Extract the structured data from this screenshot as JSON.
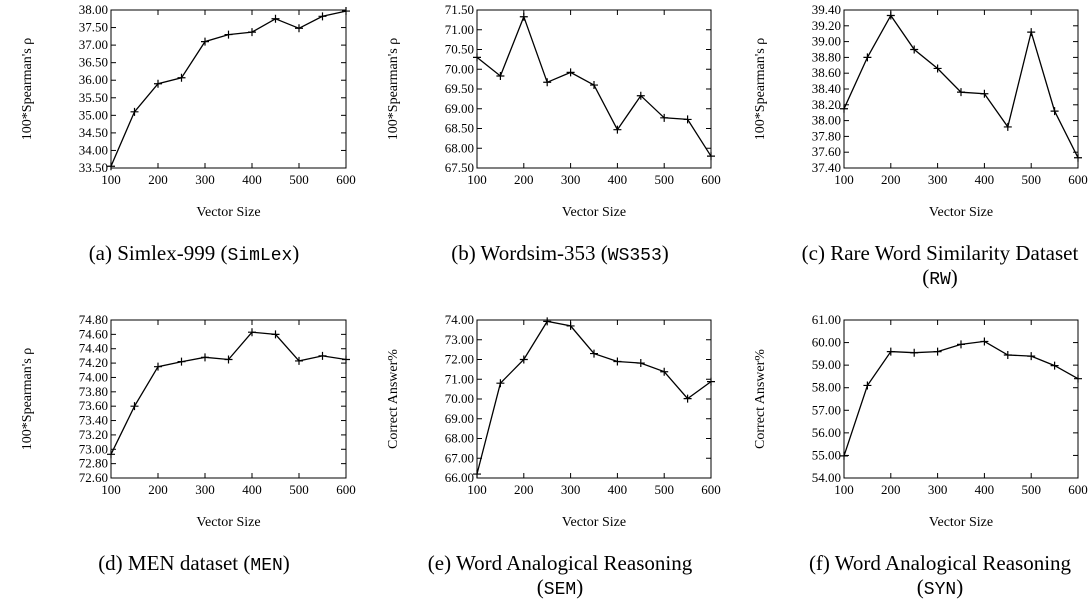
{
  "chart_data": [
    {
      "type": "line",
      "caption": {
        "prefix": "(a) Simlex-999 (",
        "code": "SimLex",
        "suffix": ")"
      },
      "xlabel": "Vector Size",
      "ylabel": "100*Spearman's ρ",
      "x": [
        100,
        150,
        200,
        250,
        300,
        350,
        400,
        450,
        500,
        550,
        600
      ],
      "y": [
        33.55,
        35.1,
        35.9,
        36.07,
        37.1,
        37.3,
        37.37,
        37.75,
        37.48,
        37.82,
        37.97
      ],
      "xlim": [
        100,
        600
      ],
      "ylim": [
        33.5,
        38.0
      ],
      "xticks": [
        "100",
        "200",
        "300",
        "400",
        "500",
        "600"
      ],
      "yticks": [
        "33.50",
        "34.00",
        "34.50",
        "35.00",
        "35.50",
        "36.00",
        "36.50",
        "37.00",
        "37.50",
        "38.00"
      ]
    },
    {
      "type": "line",
      "caption": {
        "prefix": "(b) Wordsim-353 (",
        "code": "WS353",
        "suffix": ")"
      },
      "xlabel": "Vector Size",
      "ylabel": "100*Spearman's ρ",
      "x": [
        100,
        150,
        200,
        250,
        300,
        350,
        400,
        450,
        500,
        550,
        600
      ],
      "y": [
        70.3,
        69.83,
        71.33,
        69.67,
        69.92,
        69.6,
        68.47,
        69.33,
        68.77,
        68.73,
        67.8
      ],
      "xlim": [
        100,
        600
      ],
      "ylim": [
        67.5,
        71.5
      ],
      "xticks": [
        "100",
        "200",
        "300",
        "400",
        "500",
        "600"
      ],
      "yticks": [
        "67.50",
        "68.00",
        "68.50",
        "69.00",
        "69.50",
        "70.00",
        "70.50",
        "71.00",
        "71.50"
      ]
    },
    {
      "type": "line",
      "caption": {
        "prefix": "(c) Rare Word Similarity Dataset",
        "code": "RW",
        "suffix": ""
      },
      "xlabel": "Vector Size",
      "ylabel": "100*Spearman's ρ",
      "x": [
        100,
        150,
        200,
        250,
        300,
        350,
        400,
        450,
        500,
        550,
        600
      ],
      "y": [
        38.15,
        38.8,
        39.33,
        38.9,
        38.66,
        38.36,
        38.34,
        37.92,
        39.12,
        38.12,
        37.53
      ],
      "xlim": [
        100,
        600
      ],
      "ylim": [
        37.4,
        39.4
      ],
      "xticks": [
        "100",
        "200",
        "300",
        "400",
        "500",
        "600"
      ],
      "yticks": [
        "37.40",
        "37.60",
        "37.80",
        "38.00",
        "38.20",
        "38.40",
        "38.60",
        "38.80",
        "39.00",
        "39.20",
        "39.40"
      ]
    },
    {
      "type": "line",
      "caption": {
        "prefix": "(d) MEN dataset (",
        "code": "MEN",
        "suffix": ")"
      },
      "xlabel": "Vector Size",
      "ylabel": "100*Spearman's ρ",
      "x": [
        100,
        150,
        200,
        250,
        300,
        350,
        400,
        450,
        500,
        550,
        600
      ],
      "y": [
        72.93,
        73.6,
        74.15,
        74.22,
        74.28,
        74.25,
        74.63,
        74.6,
        74.23,
        74.3,
        74.25
      ],
      "xlim": [
        100,
        600
      ],
      "ylim": [
        72.6,
        74.8
      ],
      "xticks": [
        "100",
        "200",
        "300",
        "400",
        "500",
        "600"
      ],
      "yticks": [
        "72.60",
        "72.80",
        "73.00",
        "73.20",
        "73.40",
        "73.60",
        "73.80",
        "74.00",
        "74.20",
        "74.40",
        "74.60",
        "74.80"
      ]
    },
    {
      "type": "line",
      "caption": {
        "prefix": "(e) Word Analogical Reasoning",
        "code": "SEM",
        "suffix": ""
      },
      "xlabel": "Vector Size",
      "ylabel": "Correct Answer%",
      "x": [
        100,
        150,
        200,
        250,
        300,
        350,
        400,
        450,
        500,
        550,
        600
      ],
      "y": [
        66.2,
        70.8,
        72.0,
        73.93,
        73.7,
        72.3,
        71.9,
        71.82,
        71.38,
        70.02,
        70.88
      ],
      "xlim": [
        100,
        600
      ],
      "ylim": [
        66.0,
        74.0
      ],
      "xticks": [
        "100",
        "200",
        "300",
        "400",
        "500",
        "600"
      ],
      "yticks": [
        "66.00",
        "67.00",
        "68.00",
        "69.00",
        "70.00",
        "71.00",
        "72.00",
        "73.00",
        "74.00"
      ]
    },
    {
      "type": "line",
      "caption": {
        "prefix": "(f) Word Analogical Reasoning",
        "code": "SYN",
        "suffix": ""
      },
      "xlabel": "Vector Size",
      "ylabel": "Correct Answer%",
      "x": [
        100,
        150,
        200,
        250,
        300,
        350,
        400,
        450,
        500,
        550,
        600
      ],
      "y": [
        54.98,
        58.1,
        59.6,
        59.55,
        59.6,
        59.92,
        60.05,
        59.45,
        59.4,
        58.98,
        58.4
      ],
      "xlim": [
        100,
        600
      ],
      "ylim": [
        54.0,
        61.0
      ],
      "xticks": [
        "100",
        "200",
        "300",
        "400",
        "500",
        "600"
      ],
      "yticks": [
        "54.00",
        "55.00",
        "56.00",
        "57.00",
        "58.00",
        "59.00",
        "60.00",
        "61.00"
      ]
    }
  ]
}
